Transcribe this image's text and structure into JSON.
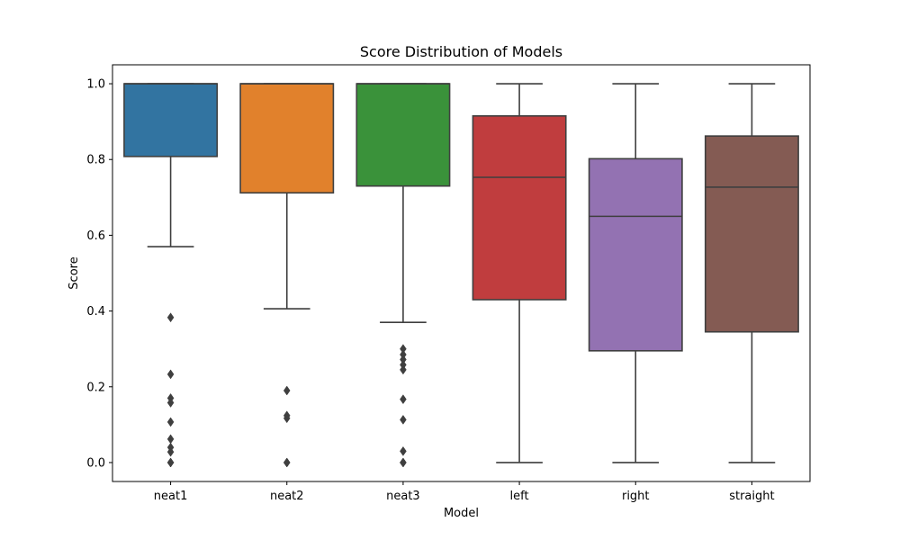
{
  "chart_data": {
    "type": "box",
    "title": "Score Distribution of Models",
    "xlabel": "Model",
    "ylabel": "Score",
    "ylim": [
      -0.05,
      1.05
    ],
    "yticks": [
      0.0,
      0.2,
      0.4,
      0.6,
      0.8,
      1.0
    ],
    "ytick_labels": [
      "0.0",
      "0.2",
      "0.4",
      "0.6",
      "0.8",
      "1.0"
    ],
    "categories": [
      "neat1",
      "neat2",
      "neat3",
      "left",
      "right",
      "straight"
    ],
    "boxes": [
      {
        "name": "neat1",
        "color": "#3274a1",
        "whislo": 0.57,
        "q1": 0.808,
        "med": 1.0,
        "q3": 1.0,
        "whishi": 1.0,
        "fliers": [
          0.383,
          0.233,
          0.17,
          0.158,
          0.107,
          0.062,
          0.04,
          0.028,
          0.0,
          0.0
        ]
      },
      {
        "name": "neat2",
        "color": "#e1812c",
        "whislo": 0.406,
        "q1": 0.712,
        "med": 1.0,
        "q3": 1.0,
        "whishi": 1.0,
        "fliers": [
          0.19,
          0.124,
          0.117,
          0.0,
          0.0
        ]
      },
      {
        "name": "neat3",
        "color": "#3a923a",
        "whislo": 0.37,
        "q1": 0.73,
        "med": 1.0,
        "q3": 1.0,
        "whishi": 1.0,
        "fliers": [
          0.3,
          0.285,
          0.272,
          0.258,
          0.245,
          0.167,
          0.113,
          0.03,
          0.0,
          0.0
        ]
      },
      {
        "name": "left",
        "color": "#c03d3e",
        "whislo": 0.0,
        "q1": 0.43,
        "med": 0.753,
        "q3": 0.915,
        "whishi": 1.0,
        "fliers": []
      },
      {
        "name": "right",
        "color": "#9372b2",
        "whislo": 0.0,
        "q1": 0.295,
        "med": 0.65,
        "q3": 0.802,
        "whishi": 1.0,
        "fliers": []
      },
      {
        "name": "straight",
        "color": "#845b53",
        "whislo": 0.0,
        "q1": 0.345,
        "med": 0.727,
        "q3": 0.862,
        "whishi": 1.0,
        "fliers": []
      }
    ],
    "line_color": "#3f3f3f",
    "grid": false,
    "legend": "none"
  }
}
